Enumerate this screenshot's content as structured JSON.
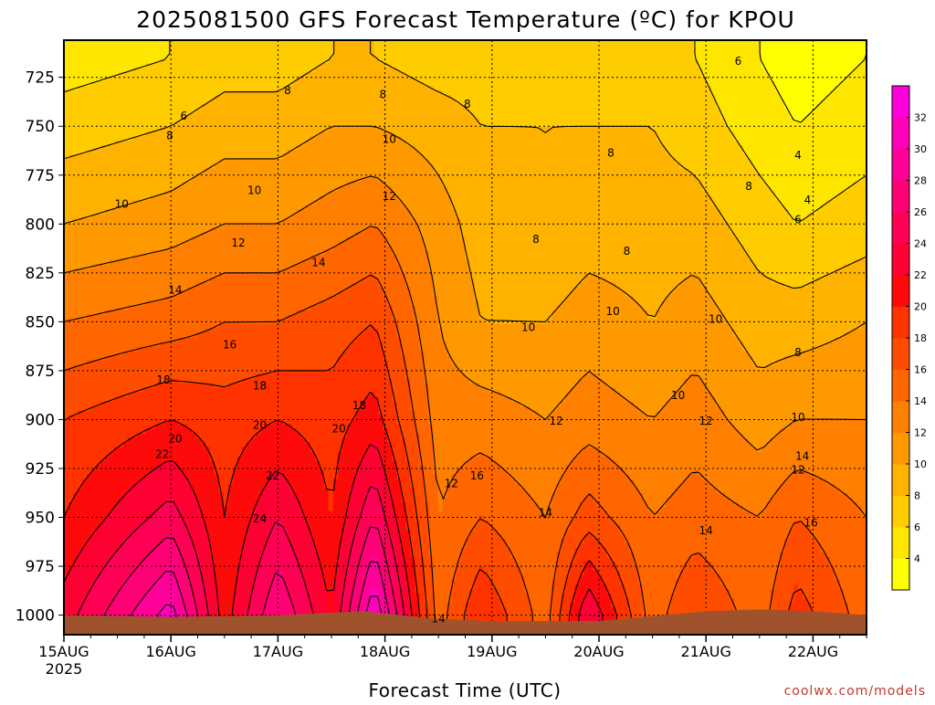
{
  "chart_data": {
    "type": "heatmap",
    "title": "2025081500 GFS Forecast Temperature (ºC) for KPOU",
    "xlabel": "Forecast Time (UTC)",
    "ylabel": "",
    "credit": "coolwx.com/models",
    "x_ticks": [
      "15AUG",
      "16AUG",
      "17AUG",
      "18AUG",
      "19AUG",
      "20AUG",
      "21AUG",
      "22AUG"
    ],
    "x_year": "2025",
    "x_range_days": [
      0,
      7.5
    ],
    "y_ticks": [
      725,
      750,
      775,
      800,
      825,
      850,
      875,
      900,
      925,
      950,
      975,
      1000
    ],
    "y_range_hpa": [
      1010,
      706
    ],
    "colorbar_levels": [
      2,
      4,
      6,
      8,
      10,
      12,
      14,
      16,
      18,
      20,
      22,
      24,
      26,
      28,
      30,
      32,
      34
    ],
    "colorbar_labels": [
      4,
      6,
      8,
      10,
      12,
      14,
      16,
      18,
      20,
      22,
      24,
      26,
      28,
      30,
      32
    ],
    "colorbar_colors": [
      "#ffff00",
      "#ffe600",
      "#ffcc00",
      "#ffb300",
      "#ff9900",
      "#ff8000",
      "#ff6600",
      "#ff4d00",
      "#ff3300",
      "#ff0a0a",
      "#ff0033",
      "#ff0055",
      "#ff0077",
      "#ff0099",
      "#ff00bb",
      "#ff00dd"
    ],
    "terrain_color": "#a0522d",
    "temperature_profiles": [
      {
        "day": 0.0,
        "values": [
          {
            "p": 1000,
            "t": 23
          },
          {
            "p": 950,
            "t": 20
          },
          {
            "p": 900,
            "t": 18
          },
          {
            "p": 850,
            "t": 14
          },
          {
            "p": 800,
            "t": 10
          },
          {
            "p": 750,
            "t": 7
          },
          {
            "p": 715,
            "t": 5
          }
        ]
      },
      {
        "day": 1.0,
        "values": [
          {
            "p": 1000,
            "t": 31
          },
          {
            "p": 950,
            "t": 25
          },
          {
            "p": 900,
            "t": 20
          },
          {
            "p": 850,
            "t": 15
          },
          {
            "p": 800,
            "t": 11
          },
          {
            "p": 750,
            "t": 8
          },
          {
            "p": 715,
            "t": 6
          }
        ]
      },
      {
        "day": 1.5,
        "values": [
          {
            "p": 1000,
            "t": 21
          },
          {
            "p": 950,
            "t": 20
          },
          {
            "p": 900,
            "t": 19
          },
          {
            "p": 850,
            "t": 16
          },
          {
            "p": 800,
            "t": 12
          },
          {
            "p": 750,
            "t": 9
          },
          {
            "p": 715,
            "t": 7
          }
        ]
      },
      {
        "day": 2.0,
        "values": [
          {
            "p": 1000,
            "t": 28
          },
          {
            "p": 950,
            "t": 24
          },
          {
            "p": 900,
            "t": 20
          },
          {
            "p": 850,
            "t": 16
          },
          {
            "p": 800,
            "t": 12
          },
          {
            "p": 750,
            "t": 9
          },
          {
            "p": 715,
            "t": 7
          }
        ]
      },
      {
        "day": 2.5,
        "values": [
          {
            "p": 1000,
            "t": 22
          },
          {
            "p": 950,
            "t": 20
          },
          {
            "p": 900,
            "t": 19
          },
          {
            "p": 850,
            "t": 17
          },
          {
            "p": 800,
            "t": 13
          },
          {
            "p": 750,
            "t": 10
          },
          {
            "p": 715,
            "t": 8
          }
        ]
      },
      {
        "day": 2.9,
        "values": [
          {
            "p": 1000,
            "t": 32
          },
          {
            "p": 950,
            "t": 26
          },
          {
            "p": 900,
            "t": 21
          },
          {
            "p": 850,
            "t": 18
          },
          {
            "p": 800,
            "t": 14
          },
          {
            "p": 750,
            "t": 10
          },
          {
            "p": 715,
            "t": 8
          }
        ]
      },
      {
        "day": 3.5,
        "values": [
          {
            "p": 1000,
            "t": 15
          },
          {
            "p": 950,
            "t": 14
          },
          {
            "p": 900,
            "t": 13
          },
          {
            "p": 850,
            "t": 12
          },
          {
            "p": 800,
            "t": 11
          },
          {
            "p": 750,
            "t": 9
          },
          {
            "p": 715,
            "t": 7
          }
        ]
      },
      {
        "day": 3.9,
        "values": [
          {
            "p": 1000,
            "t": 20
          },
          {
            "p": 950,
            "t": 16
          },
          {
            "p": 900,
            "t": 13
          },
          {
            "p": 850,
            "t": 10
          },
          {
            "p": 800,
            "t": 9
          },
          {
            "p": 750,
            "t": 8
          },
          {
            "p": 715,
            "t": 7
          }
        ]
      },
      {
        "day": 4.5,
        "values": [
          {
            "p": 1000,
            "t": 15
          },
          {
            "p": 950,
            "t": 14
          },
          {
            "p": 900,
            "t": 12
          },
          {
            "p": 850,
            "t": 10
          },
          {
            "p": 800,
            "t": 8
          },
          {
            "p": 750,
            "t": 8
          },
          {
            "p": 715,
            "t": 7
          }
        ]
      },
      {
        "day": 4.9,
        "values": [
          {
            "p": 1000,
            "t": 24
          },
          {
            "p": 950,
            "t": 17
          },
          {
            "p": 900,
            "t": 13
          },
          {
            "p": 850,
            "t": 11
          },
          {
            "p": 800,
            "t": 9
          },
          {
            "p": 750,
            "t": 8
          },
          {
            "p": 715,
            "t": 7
          }
        ]
      },
      {
        "day": 5.5,
        "values": [
          {
            "p": 1000,
            "t": 15
          },
          {
            "p": 950,
            "t": 14
          },
          {
            "p": 900,
            "t": 12
          },
          {
            "p": 850,
            "t": 10
          },
          {
            "p": 800,
            "t": 9
          },
          {
            "p": 750,
            "t": 8
          },
          {
            "p": 715,
            "t": 7
          }
        ]
      },
      {
        "day": 5.9,
        "values": [
          {
            "p": 1000,
            "t": 18
          },
          {
            "p": 950,
            "t": 15
          },
          {
            "p": 900,
            "t": 13
          },
          {
            "p": 850,
            "t": 11
          },
          {
            "p": 800,
            "t": 9
          },
          {
            "p": 750,
            "t": 7
          },
          {
            "p": 715,
            "t": 6
          }
        ]
      },
      {
        "day": 6.5,
        "values": [
          {
            "p": 1000,
            "t": 15
          },
          {
            "p": 950,
            "t": 14
          },
          {
            "p": 900,
            "t": 11
          },
          {
            "p": 850,
            "t": 9
          },
          {
            "p": 800,
            "t": 7
          },
          {
            "p": 750,
            "t": 5
          },
          {
            "p": 715,
            "t": 4
          }
        ]
      },
      {
        "day": 6.85,
        "values": [
          {
            "p": 1000,
            "t": 19
          },
          {
            "p": 950,
            "t": 16
          },
          {
            "p": 900,
            "t": 12
          },
          {
            "p": 850,
            "t": 9
          },
          {
            "p": 800,
            "t": 6
          },
          {
            "p": 750,
            "t": 4
          },
          {
            "p": 715,
            "t": 3
          }
        ]
      },
      {
        "day": 7.5,
        "values": [
          {
            "p": 1000,
            "t": 15
          },
          {
            "p": 950,
            "t": 14
          },
          {
            "p": 900,
            "t": 12
          },
          {
            "p": 850,
            "t": 10
          },
          {
            "p": 800,
            "t": 7
          },
          {
            "p": 750,
            "t": 5
          },
          {
            "p": 715,
            "t": 4
          }
        ]
      }
    ],
    "surface_pressure": [
      {
        "day": 0.0,
        "p": 1000
      },
      {
        "day": 1.0,
        "p": 1001
      },
      {
        "day": 2.0,
        "p": 1000
      },
      {
        "day": 2.8,
        "p": 998
      },
      {
        "day": 3.5,
        "p": 1002
      },
      {
        "day": 4.0,
        "p": 1003
      },
      {
        "day": 5.0,
        "p": 1003
      },
      {
        "day": 6.0,
        "p": 998
      },
      {
        "day": 6.5,
        "p": 997
      },
      {
        "day": 7.0,
        "p": 998
      },
      {
        "day": 7.5,
        "p": 1000
      }
    ],
    "contour_labels": [
      {
        "text": "6",
        "day": 1.12,
        "p": 745
      },
      {
        "text": "8",
        "day": 0.99,
        "p": 755
      },
      {
        "text": "8",
        "day": 2.09,
        "p": 732
      },
      {
        "text": "8",
        "day": 2.98,
        "p": 734
      },
      {
        "text": "8",
        "day": 3.77,
        "p": 739
      },
      {
        "text": "10",
        "day": 0.54,
        "p": 790
      },
      {
        "text": "10",
        "day": 1.78,
        "p": 783
      },
      {
        "text": "10",
        "day": 3.04,
        "p": 757
      },
      {
        "text": "12",
        "day": 1.63,
        "p": 810
      },
      {
        "text": "12",
        "day": 3.04,
        "p": 786
      },
      {
        "text": "14",
        "day": 1.04,
        "p": 834
      },
      {
        "text": "14",
        "day": 2.38,
        "p": 820
      },
      {
        "text": "16",
        "day": 1.55,
        "p": 862
      },
      {
        "text": "18",
        "day": 0.93,
        "p": 880
      },
      {
        "text": "18",
        "day": 1.83,
        "p": 883
      },
      {
        "text": "18",
        "day": 2.76,
        "p": 893
      },
      {
        "text": "20",
        "day": 1.04,
        "p": 910
      },
      {
        "text": "20",
        "day": 1.83,
        "p": 903
      },
      {
        "text": "20",
        "day": 2.57,
        "p": 905
      },
      {
        "text": "22",
        "day": 0.92,
        "p": 918
      },
      {
        "text": "22",
        "day": 1.95,
        "p": 929
      },
      {
        "text": "24",
        "day": 1.83,
        "p": 951
      },
      {
        "text": "12",
        "day": 3.62,
        "p": 933
      },
      {
        "text": "16",
        "day": 3.86,
        "p": 929
      },
      {
        "text": "14",
        "day": 3.5,
        "p": 1002
      },
      {
        "text": "12",
        "day": 4.6,
        "p": 901
      },
      {
        "text": "14",
        "day": 4.5,
        "p": 948
      },
      {
        "text": "10",
        "day": 4.34,
        "p": 853
      },
      {
        "text": "8",
        "day": 4.41,
        "p": 808
      },
      {
        "text": "8",
        "day": 5.11,
        "p": 764
      },
      {
        "text": "8",
        "day": 5.26,
        "p": 814
      },
      {
        "text": "10",
        "day": 5.13,
        "p": 845
      },
      {
        "text": "10",
        "day": 5.74,
        "p": 888
      },
      {
        "text": "10",
        "day": 6.09,
        "p": 849
      },
      {
        "text": "12",
        "day": 6.0,
        "p": 901
      },
      {
        "text": "14",
        "day": 6.0,
        "p": 957
      },
      {
        "text": "6",
        "day": 6.3,
        "p": 717
      },
      {
        "text": "4",
        "day": 6.86,
        "p": 765
      },
      {
        "text": "8",
        "day": 6.4,
        "p": 781
      },
      {
        "text": "6",
        "day": 6.86,
        "p": 798
      },
      {
        "text": "4",
        "day": 6.95,
        "p": 788
      },
      {
        "text": "8",
        "day": 6.86,
        "p": 866
      },
      {
        "text": "10",
        "day": 6.86,
        "p": 899
      },
      {
        "text": "12",
        "day": 6.86,
        "p": 926
      },
      {
        "text": "14",
        "day": 6.9,
        "p": 919
      },
      {
        "text": "16",
        "day": 6.98,
        "p": 953
      }
    ]
  }
}
